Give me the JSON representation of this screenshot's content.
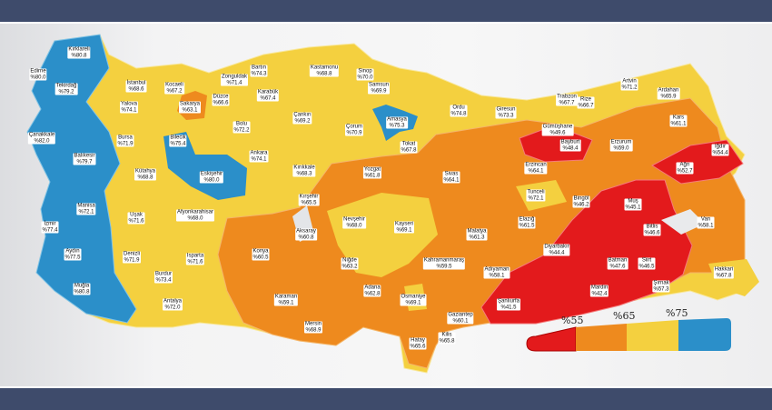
{
  "legend": {
    "thresholds": [
      "%55",
      "%65",
      "%75"
    ],
    "colors": {
      "below_55": "#e31a1c",
      "55_65": "#ee8a1e",
      "65_75": "#f4d03f",
      "above_75": "#2b8fc9"
    }
  },
  "provinces": [
    {
      "name": "Edirne",
      "value": "%80.0"
    },
    {
      "name": "Kırklareli",
      "value": "%80.8"
    },
    {
      "name": "Tekirdağ",
      "value": "%79.2"
    },
    {
      "name": "İstanbul",
      "value": "%68.6"
    },
    {
      "name": "Kocaeli",
      "value": "%67.2"
    },
    {
      "name": "Yalova",
      "value": "%74.1"
    },
    {
      "name": "Sakarya",
      "value": "%63.1"
    },
    {
      "name": "Düzce",
      "value": "%66.6"
    },
    {
      "name": "Bolu",
      "value": "%72.2"
    },
    {
      "name": "Zonguldak",
      "value": "%71.4"
    },
    {
      "name": "Bartın",
      "value": "%74.3"
    },
    {
      "name": "Karabük",
      "value": "%67.4"
    },
    {
      "name": "Kastamonu",
      "value": "%68.8"
    },
    {
      "name": "Sinop",
      "value": "%70.0"
    },
    {
      "name": "Samsun",
      "value": "%69.9"
    },
    {
      "name": "Çankırı",
      "value": "%69.2"
    },
    {
      "name": "Çorum",
      "value": "%70.9"
    },
    {
      "name": "Amasya",
      "value": "%75.3"
    },
    {
      "name": "Tokat",
      "value": "%67.8"
    },
    {
      "name": "Ordu",
      "value": "%74.8"
    },
    {
      "name": "Giresun",
      "value": "%73.3"
    },
    {
      "name": "Trabzon",
      "value": "%67.7"
    },
    {
      "name": "Rize",
      "value": "%66.7"
    },
    {
      "name": "Artvin",
      "value": "%71.2"
    },
    {
      "name": "Ardahan",
      "value": "%65.9"
    },
    {
      "name": "Gümüşhane",
      "value": "%49.6"
    },
    {
      "name": "Bayburt",
      "value": "%48.4"
    },
    {
      "name": "Erzurum",
      "value": "%59.0"
    },
    {
      "name": "Kars",
      "value": "%61.1"
    },
    {
      "name": "Iğdır",
      "value": "%54.4"
    },
    {
      "name": "Ağrı",
      "value": "%52.7"
    },
    {
      "name": "Erzincan",
      "value": "%64.1"
    },
    {
      "name": "Çanakkale",
      "value": "%82.0"
    },
    {
      "name": "Balıkesir",
      "value": "%79.7"
    },
    {
      "name": "Bursa",
      "value": "%71.9"
    },
    {
      "name": "Bilecik",
      "value": "%75.4"
    },
    {
      "name": "Eskişehir",
      "value": "%80.0"
    },
    {
      "name": "Kütahya",
      "value": "%68.8"
    },
    {
      "name": "Ankara",
      "value": "%74.1"
    },
    {
      "name": "Kırıkkale",
      "value": "%68.3"
    },
    {
      "name": "Kırşehir",
      "value": "%65.5"
    },
    {
      "name": "Yozgat",
      "value": "%61.8"
    },
    {
      "name": "Sivas",
      "value": "%64.1"
    },
    {
      "name": "Manisa",
      "value": "%72.1"
    },
    {
      "name": "Uşak",
      "value": "%71.6"
    },
    {
      "name": "Afyonkarahisar",
      "value": "%68.0"
    },
    {
      "name": "İzmir",
      "value": "%77.4"
    },
    {
      "name": "Aydın",
      "value": "%77.5"
    },
    {
      "name": "Denizli",
      "value": "%71.9"
    },
    {
      "name": "Isparta",
      "value": "%71.6"
    },
    {
      "name": "Muğla",
      "value": "%80.8"
    },
    {
      "name": "Burdur",
      "value": "%73.4"
    },
    {
      "name": "Antalya",
      "value": "%72.0"
    },
    {
      "name": "Konya",
      "value": "%60.5"
    },
    {
      "name": "Aksaray",
      "value": "%60.8"
    },
    {
      "name": "Nevşehir",
      "value": "%68.0"
    },
    {
      "name": "Niğde",
      "value": "%63.2"
    },
    {
      "name": "Kayseri",
      "value": "%69.1"
    },
    {
      "name": "Karaman",
      "value": "%59.1"
    },
    {
      "name": "Mersin",
      "value": "%68.9"
    },
    {
      "name": "Adana",
      "value": "%62.8"
    },
    {
      "name": "Osmaniye",
      "value": "%69.1"
    },
    {
      "name": "Hatay",
      "value": "%65.6"
    },
    {
      "name": "Kilis",
      "value": "%65.8"
    },
    {
      "name": "Gaziantep",
      "value": "%60.1"
    },
    {
      "name": "Kahramanmaraş",
      "value": "%59.5"
    },
    {
      "name": "Adıyaman",
      "value": "%58.1"
    },
    {
      "name": "Malatya",
      "value": "%61.3"
    },
    {
      "name": "Tunceli",
      "value": "%72.1"
    },
    {
      "name": "Elazığ",
      "value": "%61.5"
    },
    {
      "name": "Bingöl",
      "value": "%46.2"
    },
    {
      "name": "Muş",
      "value": "%45.1"
    },
    {
      "name": "Bitlis",
      "value": "%46.6"
    },
    {
      "name": "Van",
      "value": "%58.1"
    },
    {
      "name": "Diyarbakır",
      "value": "%44.4"
    },
    {
      "name": "Batman",
      "value": "%47.6"
    },
    {
      "name": "Siirt",
      "value": "%46.5"
    },
    {
      "name": "Mardin",
      "value": "%42.4"
    },
    {
      "name": "Şanlıurfa",
      "value": "%41.5"
    },
    {
      "name": "Şırnak",
      "value": "%57.3"
    },
    {
      "name": "Hakkari",
      "value": "%67.8"
    }
  ]
}
